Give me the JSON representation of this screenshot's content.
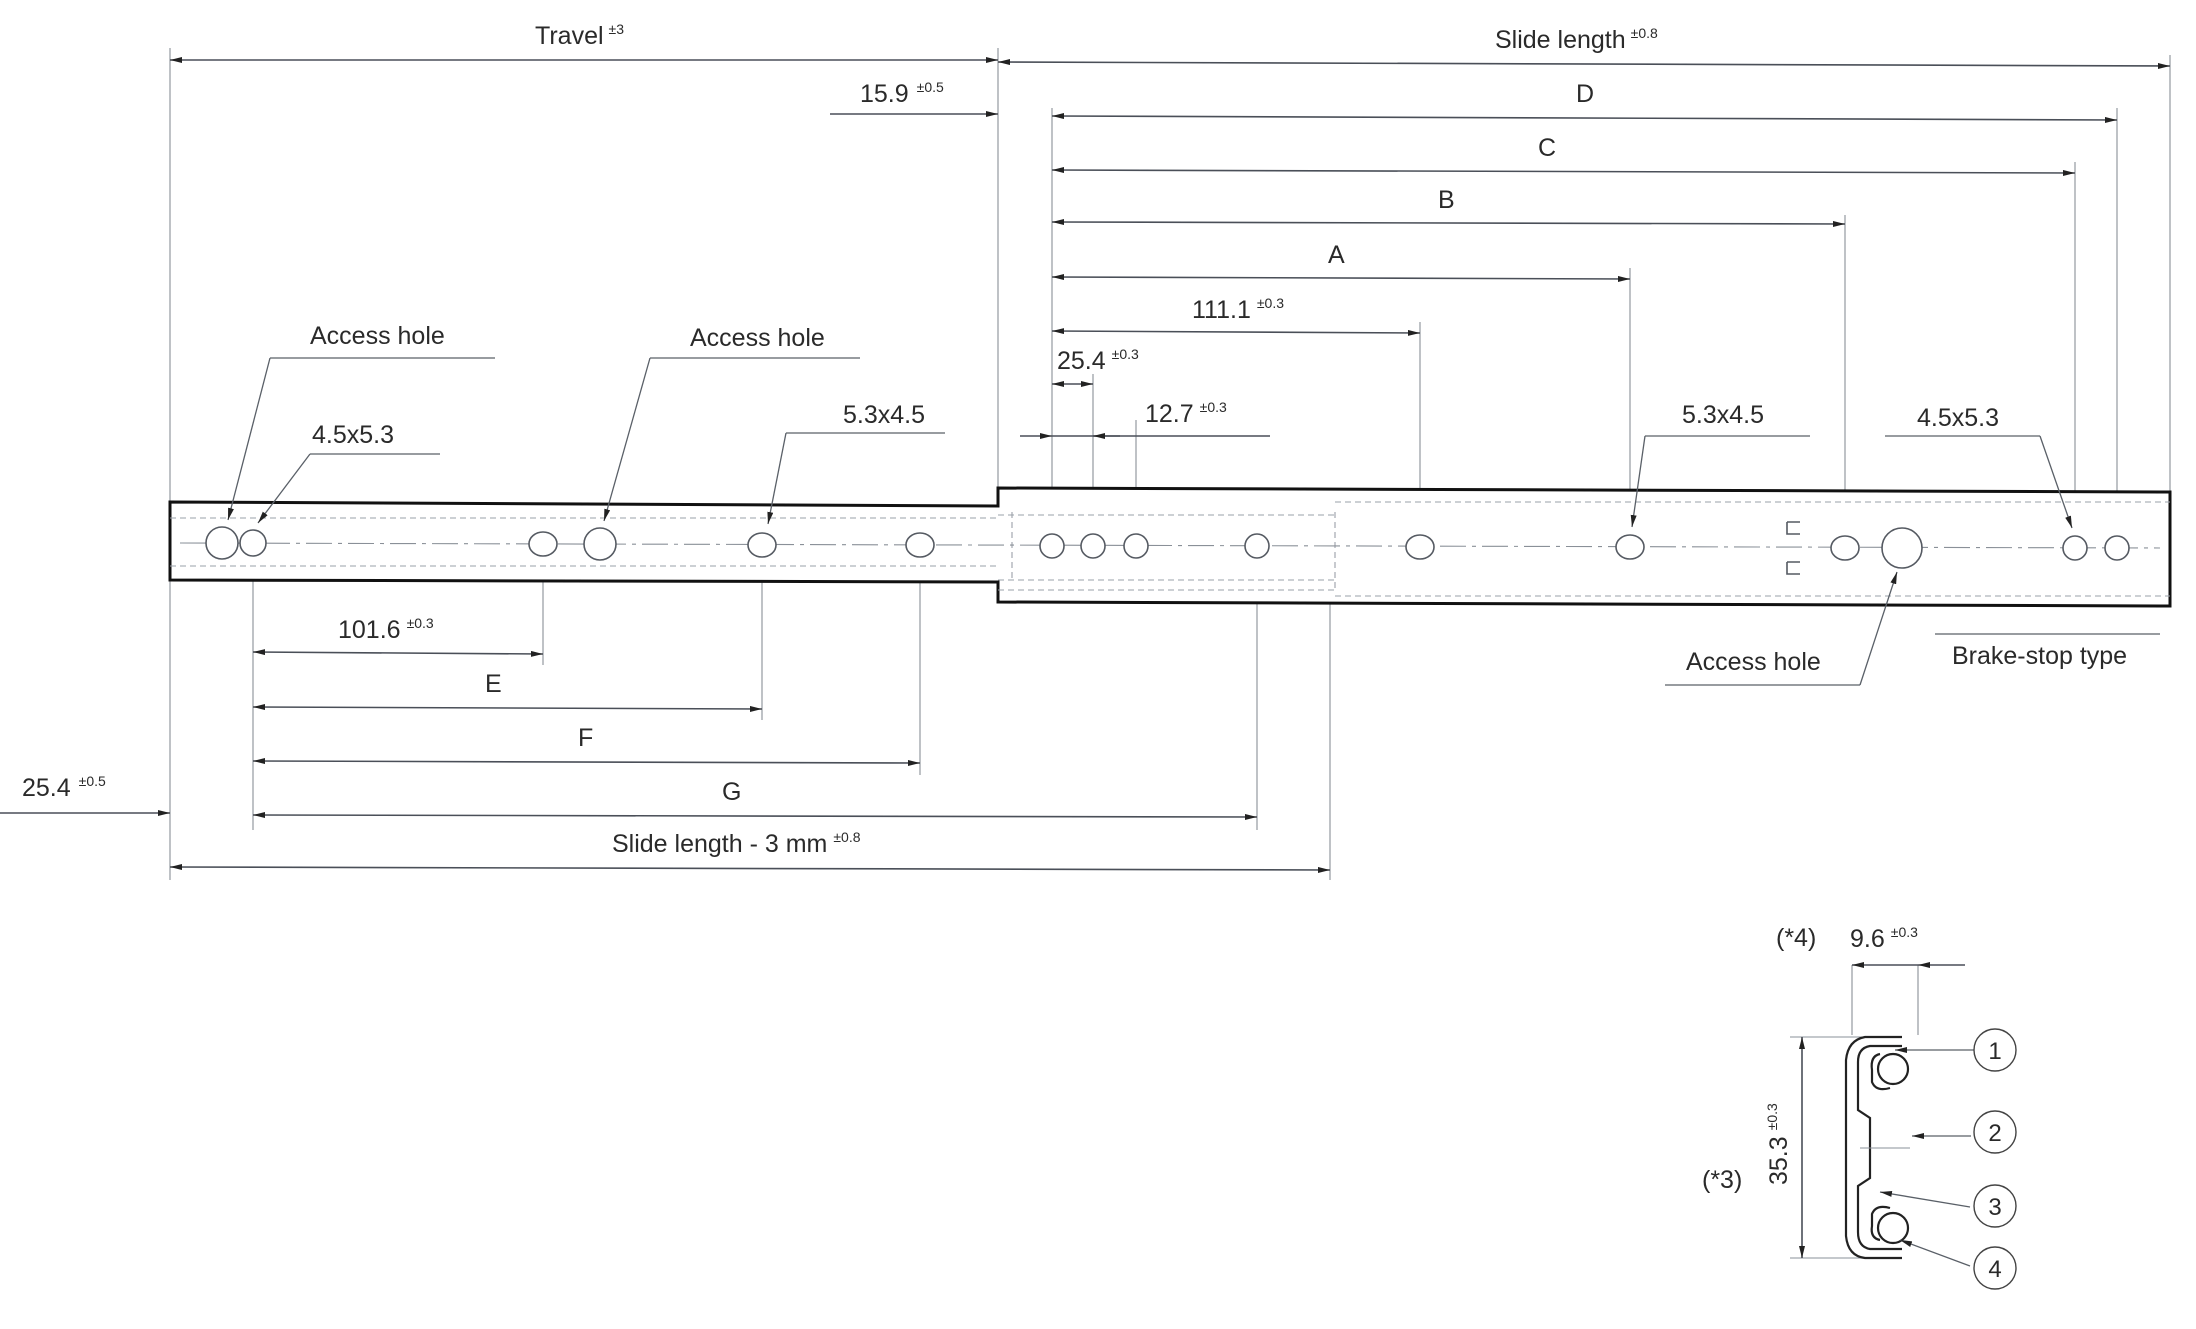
{
  "labels": {
    "travel": "Travel",
    "travel_tol": "±3",
    "slide_length": "Slide length",
    "slide_length_tol": "±0.8",
    "dim_15_9": "15.9",
    "dim_15_9_tol": "±0.5",
    "D": "D",
    "C": "C",
    "B": "B",
    "A": "A",
    "dim_111_1": "111.1",
    "dim_111_1_tol": "±0.3",
    "dim_25_4_top": "25.4",
    "dim_25_4_top_tol": "±0.3",
    "dim_12_7": "12.7",
    "dim_12_7_tol": "±0.3",
    "access_hole_1": "Access hole",
    "access_hole_2": "Access hole",
    "access_hole_3": "Access hole",
    "hole_4_5x5_3_left": "4.5x5.3",
    "hole_5_3x4_5_mid": "5.3x4.5",
    "hole_5_3x4_5_right": "5.3x4.5",
    "hole_4_5x5_3_right": "4.5x5.3",
    "brake_stop": "Brake-stop type",
    "dim_101_6": "101.6",
    "dim_101_6_tol": "±0.3",
    "E": "E",
    "F": "F",
    "G": "G",
    "dim_25_4_left": "25.4",
    "dim_25_4_left_tol": "±0.5",
    "slide_length_minus": "Slide length - 3 mm",
    "slide_length_minus_tol": "±0.8",
    "note_4": "(*4)",
    "dim_9_6": "9.6",
    "dim_9_6_tol": "±0.3",
    "note_3": "(*3)",
    "dim_35_3": "35.3",
    "dim_35_3_tol": "±0.3",
    "callout_1": "1",
    "callout_2": "2",
    "callout_3": "3",
    "callout_4": "4"
  }
}
